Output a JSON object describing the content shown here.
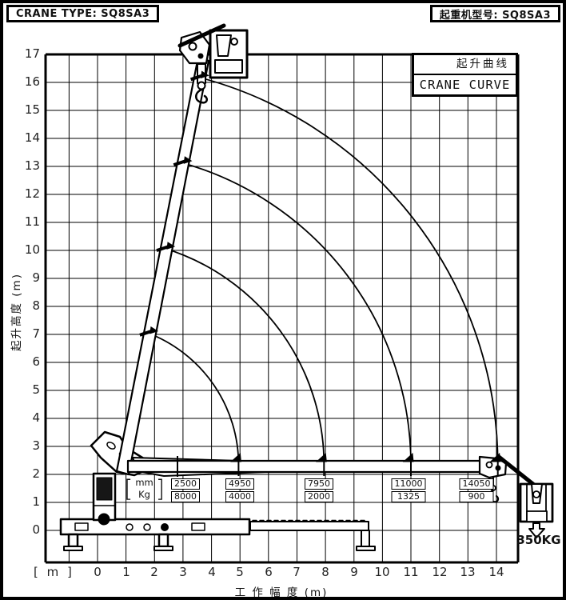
{
  "header": {
    "left_label": "CRANE TYPE: SQ8SA3",
    "right_label": "起重机型号: SQ8SA3"
  },
  "legend": {
    "title_cn": "起升曲线",
    "title_en": "CRANE CURVE"
  },
  "chart_data": {
    "type": "line",
    "title_cn": "起升曲线",
    "title_en": "CRANE CURVE",
    "xlabel": "工 作 幅 度 (m)",
    "ylabel": "起升高度 (m)",
    "axis_unit_note": "[ m ]",
    "xlim": [
      0,
      14
    ],
    "ylim": [
      0,
      17
    ],
    "grid": "on",
    "x_ticks": [
      "0",
      "1",
      "2",
      "3",
      "4",
      "5",
      "6",
      "7",
      "8",
      "9",
      "10",
      "11",
      "12",
      "13",
      "14"
    ],
    "y_ticks": [
      "0",
      "1",
      "2",
      "3",
      "4",
      "5",
      "6",
      "7",
      "8",
      "9",
      "10",
      "11",
      "12",
      "13",
      "14",
      "15",
      "16",
      "17"
    ],
    "curves": {
      "description": "boom-tip luffing arcs centered at boom pivot",
      "pivot": {
        "x_m": 0,
        "y_m": 2.35
      },
      "boom_lengths_m": [
        4.95,
        7.95,
        11.0,
        14.05
      ]
    },
    "load_points": [
      {
        "boom_length_mm": "2500",
        "capacity_kg": "8000"
      },
      {
        "boom_length_mm": "4950",
        "capacity_kg": "4000"
      },
      {
        "boom_length_mm": "7950",
        "capacity_kg": "2000"
      },
      {
        "boom_length_mm": "11000",
        "capacity_kg": "1325"
      },
      {
        "boom_length_mm": "14050",
        "capacity_kg": "900"
      }
    ],
    "unit_bracket": {
      "open": "[",
      "top": "mm",
      "bottom": "Kg",
      "close": "]"
    },
    "aux_winch_label": "350KG",
    "line_color": "#000000",
    "background_color": "#ffffff"
  }
}
